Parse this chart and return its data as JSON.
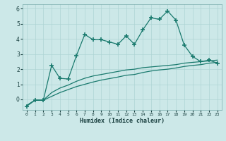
{
  "xlabel": "Humidex (Indice chaleur)",
  "x": [
    0,
    1,
    2,
    3,
    4,
    5,
    6,
    7,
    8,
    9,
    10,
    11,
    12,
    13,
    14,
    15,
    16,
    17,
    18,
    19,
    20,
    21,
    22,
    23
  ],
  "line1_y": [
    -0.45,
    -0.05,
    -0.05,
    2.25,
    1.4,
    1.35,
    2.9,
    4.3,
    3.95,
    3.95,
    3.8,
    3.65,
    4.2,
    3.65,
    4.6,
    5.4,
    5.3,
    5.85,
    5.25,
    3.6,
    2.85,
    2.5,
    2.6,
    2.4
  ],
  "line2_y": [
    -0.4,
    -0.05,
    -0.05,
    0.45,
    0.75,
    0.95,
    1.2,
    1.4,
    1.55,
    1.65,
    1.75,
    1.85,
    1.95,
    2.0,
    2.1,
    2.15,
    2.2,
    2.25,
    2.3,
    2.4,
    2.45,
    2.5,
    2.55,
    2.6
  ],
  "line3_y": [
    -0.4,
    -0.05,
    -0.05,
    0.2,
    0.45,
    0.65,
    0.85,
    1.0,
    1.15,
    1.28,
    1.38,
    1.48,
    1.6,
    1.65,
    1.78,
    1.88,
    1.95,
    2.0,
    2.08,
    2.18,
    2.25,
    2.3,
    2.4,
    2.45
  ],
  "line_color": "#1a7a6e",
  "bg_color": "#cce8e8",
  "grid_color": "#aed4d4",
  "ylim": [
    -0.7,
    6.3
  ],
  "xlim": [
    -0.5,
    23.5
  ]
}
